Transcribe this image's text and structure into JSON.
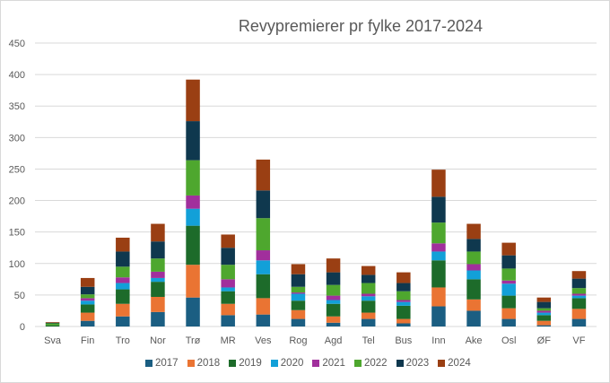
{
  "chart_data": {
    "type": "bar",
    "stacked": true,
    "title": "Revypremierer pr fylke 2017-2024",
    "xlabel": "",
    "ylabel": "",
    "ylim": [
      0,
      450
    ],
    "yticks": [
      0,
      50,
      100,
      150,
      200,
      250,
      300,
      350,
      400,
      450
    ],
    "grid": true,
    "legend_position": "bottom",
    "categories": [
      "Sva",
      "Fin",
      "Tro",
      "Nor",
      "Trø",
      "MR",
      "Ves",
      "Rog",
      "Agd",
      "Tel",
      "Bus",
      "Inn",
      "Ake",
      "Osl",
      "ØF",
      "VF"
    ],
    "series": [
      {
        "name": "2017",
        "color": "#1b5e82",
        "values": [
          0,
          9,
          16,
          23,
          46,
          18,
          19,
          12,
          6,
          12,
          5,
          32,
          25,
          12,
          2,
          12
        ]
      },
      {
        "name": "2018",
        "color": "#ea7433",
        "values": [
          0,
          13,
          20,
          24,
          52,
          18,
          26,
          14,
          10,
          10,
          7,
          30,
          18,
          17,
          7,
          16
        ]
      },
      {
        "name": "2019",
        "color": "#1d6b2a",
        "values": [
          2,
          13,
          23,
          24,
          62,
          20,
          38,
          15,
          20,
          19,
          21,
          43,
          32,
          20,
          9,
          17
        ]
      },
      {
        "name": "2020",
        "color": "#12a0d8",
        "values": [
          0,
          6,
          10,
          6,
          27,
          6,
          22,
          11,
          6,
          7,
          6,
          14,
          14,
          19,
          4,
          4
        ]
      },
      {
        "name": "2021",
        "color": "#a12f9c",
        "values": [
          0,
          4,
          9,
          10,
          21,
          13,
          16,
          2,
          7,
          4,
          3,
          13,
          10,
          5,
          3,
          3
        ]
      },
      {
        "name": "2022",
        "color": "#4ea72e",
        "values": [
          3,
          6,
          17,
          21,
          56,
          23,
          51,
          9,
          17,
          17,
          14,
          33,
          20,
          19,
          4,
          9
        ]
      },
      {
        "name": "2023",
        "color": "#0f384e",
        "values": [
          1,
          12,
          24,
          27,
          62,
          27,
          44,
          20,
          20,
          13,
          13,
          41,
          20,
          21,
          10,
          15
        ]
      },
      {
        "name": "2024",
        "color": "#9a3f13",
        "values": [
          1,
          14,
          22,
          28,
          66,
          21,
          49,
          16,
          22,
          14,
          17,
          43,
          24,
          20,
          7,
          12
        ]
      }
    ]
  },
  "chart": {
    "title": "Revypremierer pr fylke 2017-2024"
  }
}
